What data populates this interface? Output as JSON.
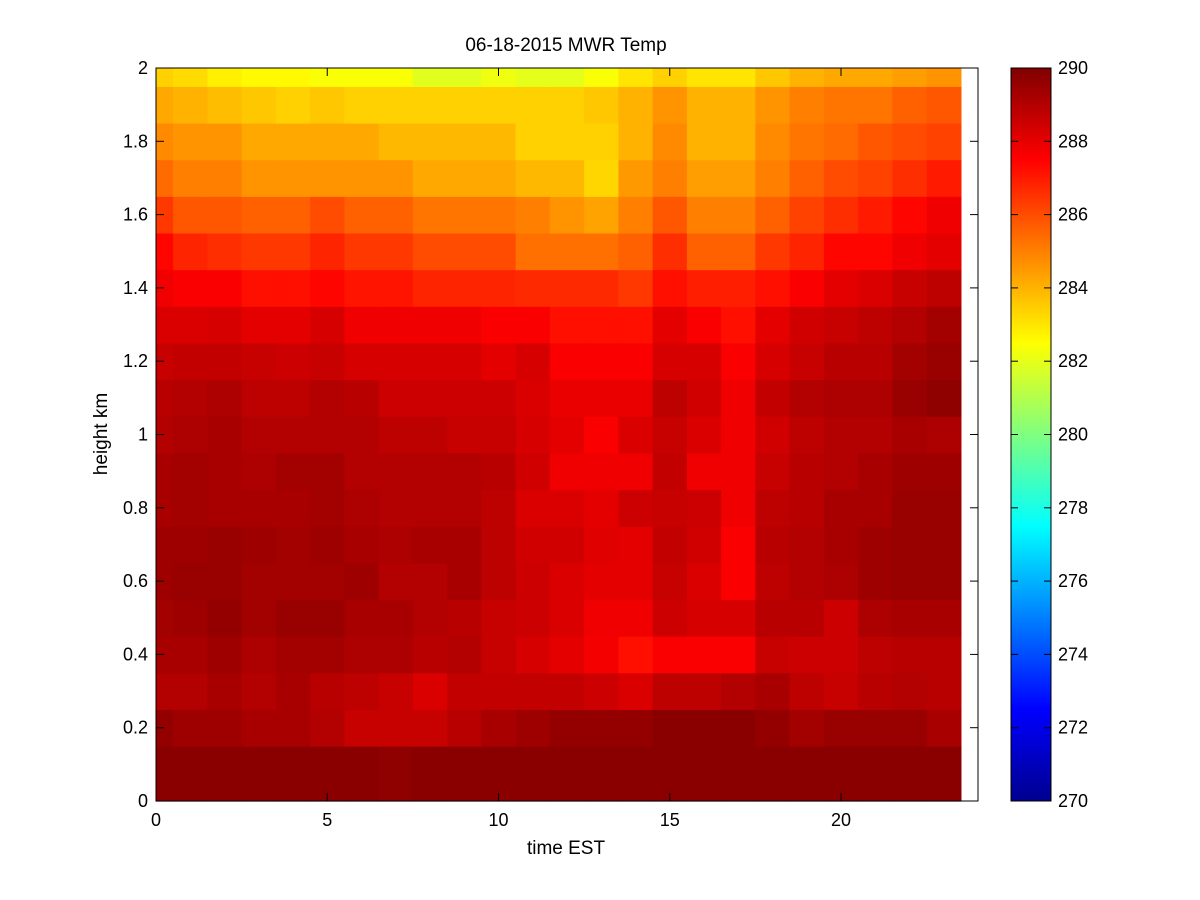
{
  "chart_data": {
    "type": "heatmap",
    "title": "06-18-2015 MWR Temp",
    "xlabel": "time EST",
    "ylabel": "height km",
    "xlim": [
      0,
      24
    ],
    "ylim": [
      0,
      2
    ],
    "xticks": [
      0,
      5,
      10,
      15,
      20
    ],
    "xtick_labels": [
      "0",
      "5",
      "10",
      "15",
      "20"
    ],
    "yticks": [
      0,
      0.2,
      0.4,
      0.6,
      0.8,
      1,
      1.2,
      1.4,
      1.6,
      1.8,
      2
    ],
    "ytick_labels": [
      "0",
      "0.2",
      "0.4",
      "0.6",
      "0.8",
      "1",
      "1.2",
      "1.4",
      "1.6",
      "1.8",
      "2"
    ],
    "colormap": "jet",
    "clim": [
      270,
      290
    ],
    "colorbar_ticks": [
      270,
      272,
      274,
      276,
      278,
      280,
      282,
      284,
      286,
      288,
      290
    ],
    "colorbar_tick_labels": [
      "270",
      "272",
      "274",
      "276",
      "278",
      "280",
      "282",
      "284",
      "286",
      "288",
      "290"
    ],
    "x_edges": [
      0,
      0.5,
      1.5,
      2.5,
      3.5,
      4.5,
      5.5,
      6.5,
      7.5,
      8.5,
      9.5,
      10.5,
      11.5,
      12.5,
      13.5,
      14.5,
      15.5,
      16.5,
      17.5,
      18.5,
      19.5,
      20.5,
      21.5,
      22.5,
      23.5
    ],
    "y_edges": [
      0,
      0.15,
      0.25,
      0.35,
      0.45,
      0.55,
      0.65,
      0.75,
      0.85,
      0.95,
      1.05,
      1.15,
      1.25,
      1.35,
      1.45,
      1.55,
      1.65,
      1.75,
      1.85,
      1.95,
      2.0
    ],
    "values": [
      [
        289.8,
        289.8,
        289.8,
        289.8,
        289.8,
        289.8,
        289.8,
        289.7,
        289.8,
        289.8,
        289.8,
        289.8,
        289.8,
        289.8,
        289.8,
        289.8,
        289.8,
        289.8,
        289.8,
        289.8,
        289.8,
        289.8,
        289.8,
        289.8
      ],
      [
        289.6,
        289.4,
        289.4,
        289.2,
        289.2,
        289.0,
        288.6,
        288.6,
        288.6,
        288.9,
        289.2,
        289.4,
        289.6,
        289.6,
        289.6,
        289.8,
        289.8,
        289.8,
        289.6,
        289.3,
        289.5,
        289.5,
        289.5,
        289.2
      ],
      [
        289.0,
        289.0,
        289.2,
        289.0,
        289.2,
        288.9,
        288.8,
        288.6,
        288.2,
        288.7,
        288.7,
        288.7,
        288.7,
        288.5,
        288.2,
        288.8,
        288.8,
        289.0,
        289.2,
        288.8,
        288.6,
        288.9,
        289.0,
        288.9
      ],
      [
        289.2,
        289.2,
        289.4,
        289.1,
        289.3,
        289.3,
        289.1,
        289.1,
        288.9,
        289.0,
        288.6,
        288.3,
        288.0,
        287.7,
        287.2,
        287.6,
        287.6,
        287.6,
        288.6,
        288.5,
        288.5,
        288.8,
        288.9,
        288.9
      ],
      [
        289.3,
        289.4,
        289.6,
        289.3,
        289.5,
        289.5,
        289.2,
        289.2,
        289.0,
        288.9,
        288.6,
        288.5,
        288.2,
        287.8,
        287.8,
        288.5,
        288.3,
        288.3,
        288.9,
        288.9,
        288.5,
        289.1,
        289.2,
        289.2
      ],
      [
        289.4,
        289.5,
        289.5,
        289.3,
        289.3,
        289.3,
        289.4,
        289.0,
        289.0,
        289.2,
        288.8,
        288.5,
        288.2,
        288.0,
        288.0,
        288.6,
        288.2,
        287.6,
        288.8,
        289.0,
        289.1,
        289.4,
        289.5,
        289.5
      ],
      [
        289.4,
        289.4,
        289.5,
        289.4,
        289.3,
        289.4,
        289.2,
        289.1,
        289.2,
        289.2,
        288.8,
        288.4,
        288.4,
        288.1,
        288.0,
        288.7,
        288.4,
        287.6,
        288.9,
        289.0,
        289.2,
        289.4,
        289.5,
        289.5
      ],
      [
        289.2,
        289.3,
        289.2,
        289.2,
        289.2,
        289.3,
        289.1,
        289.0,
        289.0,
        289.0,
        288.8,
        288.2,
        288.2,
        288.0,
        288.5,
        288.6,
        288.5,
        287.8,
        288.8,
        288.9,
        289.2,
        289.2,
        289.5,
        289.5
      ],
      [
        289.2,
        289.3,
        289.2,
        289.1,
        289.3,
        289.3,
        289.0,
        289.0,
        289.0,
        289.0,
        288.9,
        288.4,
        287.8,
        287.8,
        287.8,
        288.7,
        287.8,
        287.8,
        288.6,
        288.9,
        289.0,
        289.2,
        289.4,
        289.4
      ],
      [
        289.0,
        289.1,
        289.2,
        289.0,
        289.0,
        289.0,
        289.0,
        288.8,
        288.8,
        288.6,
        288.6,
        288.3,
        288.0,
        287.6,
        288.2,
        288.6,
        288.2,
        287.8,
        288.4,
        288.8,
        289.0,
        289.0,
        289.2,
        289.1
      ],
      [
        288.9,
        289.0,
        289.1,
        288.8,
        288.8,
        289.0,
        288.9,
        288.5,
        288.5,
        288.5,
        288.5,
        288.2,
        287.9,
        287.9,
        287.9,
        288.8,
        288.4,
        287.8,
        288.7,
        289.0,
        289.1,
        289.1,
        289.5,
        289.7
      ],
      [
        288.6,
        288.7,
        288.7,
        288.6,
        288.5,
        288.6,
        288.3,
        288.3,
        288.3,
        288.3,
        288.0,
        288.3,
        287.6,
        287.6,
        287.6,
        288.3,
        288.3,
        287.6,
        288.3,
        288.6,
        288.9,
        288.9,
        289.3,
        289.5
      ],
      [
        288.2,
        288.2,
        288.3,
        288.0,
        288.0,
        288.3,
        287.8,
        287.8,
        287.8,
        287.8,
        287.6,
        287.6,
        287.2,
        287.2,
        287.2,
        288.0,
        287.6,
        287.2,
        288.0,
        288.4,
        288.6,
        288.8,
        289.0,
        289.3
      ],
      [
        287.8,
        287.6,
        287.6,
        287.2,
        287.2,
        287.4,
        287.1,
        287.1,
        286.8,
        286.8,
        286.8,
        286.7,
        286.7,
        286.7,
        286.4,
        287.2,
        286.9,
        286.9,
        287.2,
        287.6,
        288.0,
        288.2,
        288.6,
        288.8
      ],
      [
        287.4,
        286.8,
        286.6,
        286.4,
        286.4,
        286.8,
        286.4,
        286.4,
        286.0,
        286.0,
        286.0,
        285.3,
        285.3,
        285.3,
        285.6,
        286.6,
        285.6,
        285.6,
        286.4,
        286.8,
        287.4,
        287.4,
        287.8,
        288.0
      ],
      [
        286.4,
        285.8,
        285.8,
        285.6,
        285.6,
        286.0,
        285.6,
        285.6,
        285.2,
        285.2,
        285.2,
        285.0,
        284.6,
        284.3,
        285.0,
        285.8,
        285.0,
        285.0,
        285.6,
        286.2,
        286.6,
        287.0,
        287.4,
        287.8
      ],
      [
        285.4,
        285.0,
        285.0,
        284.6,
        284.6,
        284.6,
        284.6,
        284.6,
        284.2,
        284.2,
        284.2,
        283.9,
        283.9,
        283.3,
        284.5,
        285.0,
        284.4,
        284.4,
        285.0,
        285.6,
        286.0,
        286.2,
        286.6,
        287.0
      ],
      [
        284.8,
        284.6,
        284.6,
        284.2,
        284.2,
        284.2,
        284.2,
        283.9,
        283.9,
        283.9,
        283.9,
        283.4,
        283.4,
        283.4,
        284.0,
        284.8,
        284.0,
        284.0,
        284.8,
        285.2,
        285.4,
        285.8,
        286.0,
        286.2
      ],
      [
        284.2,
        284.0,
        283.8,
        283.6,
        283.4,
        283.6,
        283.4,
        283.4,
        283.4,
        283.4,
        283.4,
        283.4,
        283.4,
        283.6,
        284.0,
        284.6,
        284.0,
        284.0,
        284.6,
        285.0,
        285.2,
        285.2,
        285.6,
        285.8
      ],
      [
        283.4,
        283.2,
        282.8,
        282.6,
        282.6,
        282.4,
        282.4,
        282.4,
        281.9,
        281.9,
        282.2,
        282.0,
        282.0,
        282.4,
        283.0,
        283.4,
        283.0,
        283.0,
        283.6,
        284.0,
        284.2,
        284.2,
        284.4,
        284.6
      ]
    ]
  }
}
